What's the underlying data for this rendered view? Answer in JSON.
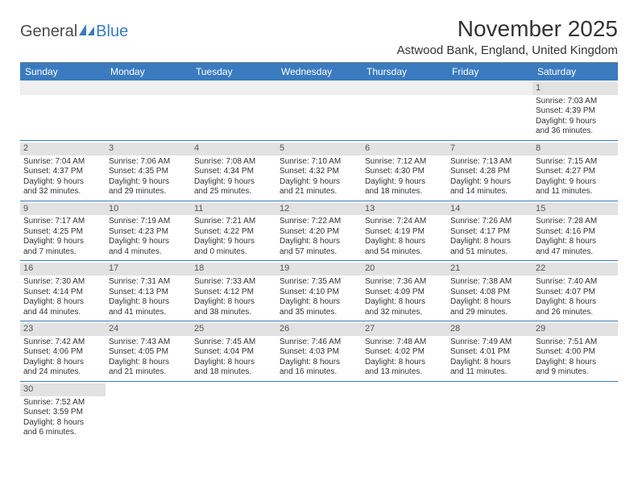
{
  "brand": {
    "part1": "General",
    "part2": "Blue"
  },
  "title": "November 2025",
  "location": "Astwood Bank, England, United Kingdom",
  "colors": {
    "header_bg": "#3a7bbf",
    "header_text": "#ffffff",
    "daynum_bg": "#e2e2e2",
    "row_border": "#3a7bbf",
    "background": "#ffffff",
    "text": "#333333"
  },
  "typography": {
    "title_fontsize": 28,
    "location_fontsize": 15,
    "header_fontsize": 12,
    "cell_fontsize": 10
  },
  "dayHeaders": [
    "Sunday",
    "Monday",
    "Tuesday",
    "Wednesday",
    "Thursday",
    "Friday",
    "Saturday"
  ],
  "weeks": [
    [
      {
        "empty": true
      },
      {
        "empty": true
      },
      {
        "empty": true
      },
      {
        "empty": true
      },
      {
        "empty": true
      },
      {
        "empty": true
      },
      {
        "day": "1",
        "sunrise": "Sunrise: 7:03 AM",
        "sunset": "Sunset: 4:39 PM",
        "daylight1": "Daylight: 9 hours",
        "daylight2": "and 36 minutes."
      }
    ],
    [
      {
        "day": "2",
        "sunrise": "Sunrise: 7:04 AM",
        "sunset": "Sunset: 4:37 PM",
        "daylight1": "Daylight: 9 hours",
        "daylight2": "and 32 minutes."
      },
      {
        "day": "3",
        "sunrise": "Sunrise: 7:06 AM",
        "sunset": "Sunset: 4:35 PM",
        "daylight1": "Daylight: 9 hours",
        "daylight2": "and 29 minutes."
      },
      {
        "day": "4",
        "sunrise": "Sunrise: 7:08 AM",
        "sunset": "Sunset: 4:34 PM",
        "daylight1": "Daylight: 9 hours",
        "daylight2": "and 25 minutes."
      },
      {
        "day": "5",
        "sunrise": "Sunrise: 7:10 AM",
        "sunset": "Sunset: 4:32 PM",
        "daylight1": "Daylight: 9 hours",
        "daylight2": "and 21 minutes."
      },
      {
        "day": "6",
        "sunrise": "Sunrise: 7:12 AM",
        "sunset": "Sunset: 4:30 PM",
        "daylight1": "Daylight: 9 hours",
        "daylight2": "and 18 minutes."
      },
      {
        "day": "7",
        "sunrise": "Sunrise: 7:13 AM",
        "sunset": "Sunset: 4:28 PM",
        "daylight1": "Daylight: 9 hours",
        "daylight2": "and 14 minutes."
      },
      {
        "day": "8",
        "sunrise": "Sunrise: 7:15 AM",
        "sunset": "Sunset: 4:27 PM",
        "daylight1": "Daylight: 9 hours",
        "daylight2": "and 11 minutes."
      }
    ],
    [
      {
        "day": "9",
        "sunrise": "Sunrise: 7:17 AM",
        "sunset": "Sunset: 4:25 PM",
        "daylight1": "Daylight: 9 hours",
        "daylight2": "and 7 minutes."
      },
      {
        "day": "10",
        "sunrise": "Sunrise: 7:19 AM",
        "sunset": "Sunset: 4:23 PM",
        "daylight1": "Daylight: 9 hours",
        "daylight2": "and 4 minutes."
      },
      {
        "day": "11",
        "sunrise": "Sunrise: 7:21 AM",
        "sunset": "Sunset: 4:22 PM",
        "daylight1": "Daylight: 9 hours",
        "daylight2": "and 0 minutes."
      },
      {
        "day": "12",
        "sunrise": "Sunrise: 7:22 AM",
        "sunset": "Sunset: 4:20 PM",
        "daylight1": "Daylight: 8 hours",
        "daylight2": "and 57 minutes."
      },
      {
        "day": "13",
        "sunrise": "Sunrise: 7:24 AM",
        "sunset": "Sunset: 4:19 PM",
        "daylight1": "Daylight: 8 hours",
        "daylight2": "and 54 minutes."
      },
      {
        "day": "14",
        "sunrise": "Sunrise: 7:26 AM",
        "sunset": "Sunset: 4:17 PM",
        "daylight1": "Daylight: 8 hours",
        "daylight2": "and 51 minutes."
      },
      {
        "day": "15",
        "sunrise": "Sunrise: 7:28 AM",
        "sunset": "Sunset: 4:16 PM",
        "daylight1": "Daylight: 8 hours",
        "daylight2": "and 47 minutes."
      }
    ],
    [
      {
        "day": "16",
        "sunrise": "Sunrise: 7:30 AM",
        "sunset": "Sunset: 4:14 PM",
        "daylight1": "Daylight: 8 hours",
        "daylight2": "and 44 minutes."
      },
      {
        "day": "17",
        "sunrise": "Sunrise: 7:31 AM",
        "sunset": "Sunset: 4:13 PM",
        "daylight1": "Daylight: 8 hours",
        "daylight2": "and 41 minutes."
      },
      {
        "day": "18",
        "sunrise": "Sunrise: 7:33 AM",
        "sunset": "Sunset: 4:12 PM",
        "daylight1": "Daylight: 8 hours",
        "daylight2": "and 38 minutes."
      },
      {
        "day": "19",
        "sunrise": "Sunrise: 7:35 AM",
        "sunset": "Sunset: 4:10 PM",
        "daylight1": "Daylight: 8 hours",
        "daylight2": "and 35 minutes."
      },
      {
        "day": "20",
        "sunrise": "Sunrise: 7:36 AM",
        "sunset": "Sunset: 4:09 PM",
        "daylight1": "Daylight: 8 hours",
        "daylight2": "and 32 minutes."
      },
      {
        "day": "21",
        "sunrise": "Sunrise: 7:38 AM",
        "sunset": "Sunset: 4:08 PM",
        "daylight1": "Daylight: 8 hours",
        "daylight2": "and 29 minutes."
      },
      {
        "day": "22",
        "sunrise": "Sunrise: 7:40 AM",
        "sunset": "Sunset: 4:07 PM",
        "daylight1": "Daylight: 8 hours",
        "daylight2": "and 26 minutes."
      }
    ],
    [
      {
        "day": "23",
        "sunrise": "Sunrise: 7:42 AM",
        "sunset": "Sunset: 4:06 PM",
        "daylight1": "Daylight: 8 hours",
        "daylight2": "and 24 minutes."
      },
      {
        "day": "24",
        "sunrise": "Sunrise: 7:43 AM",
        "sunset": "Sunset: 4:05 PM",
        "daylight1": "Daylight: 8 hours",
        "daylight2": "and 21 minutes."
      },
      {
        "day": "25",
        "sunrise": "Sunrise: 7:45 AM",
        "sunset": "Sunset: 4:04 PM",
        "daylight1": "Daylight: 8 hours",
        "daylight2": "and 18 minutes."
      },
      {
        "day": "26",
        "sunrise": "Sunrise: 7:46 AM",
        "sunset": "Sunset: 4:03 PM",
        "daylight1": "Daylight: 8 hours",
        "daylight2": "and 16 minutes."
      },
      {
        "day": "27",
        "sunrise": "Sunrise: 7:48 AM",
        "sunset": "Sunset: 4:02 PM",
        "daylight1": "Daylight: 8 hours",
        "daylight2": "and 13 minutes."
      },
      {
        "day": "28",
        "sunrise": "Sunrise: 7:49 AM",
        "sunset": "Sunset: 4:01 PM",
        "daylight1": "Daylight: 8 hours",
        "daylight2": "and 11 minutes."
      },
      {
        "day": "29",
        "sunrise": "Sunrise: 7:51 AM",
        "sunset": "Sunset: 4:00 PM",
        "daylight1": "Daylight: 8 hours",
        "daylight2": "and 9 minutes."
      }
    ],
    [
      {
        "day": "30",
        "sunrise": "Sunrise: 7:52 AM",
        "sunset": "Sunset: 3:59 PM",
        "daylight1": "Daylight: 8 hours",
        "daylight2": "and 6 minutes."
      },
      {
        "empty": true
      },
      {
        "empty": true
      },
      {
        "empty": true
      },
      {
        "empty": true
      },
      {
        "empty": true
      },
      {
        "empty": true
      }
    ]
  ]
}
